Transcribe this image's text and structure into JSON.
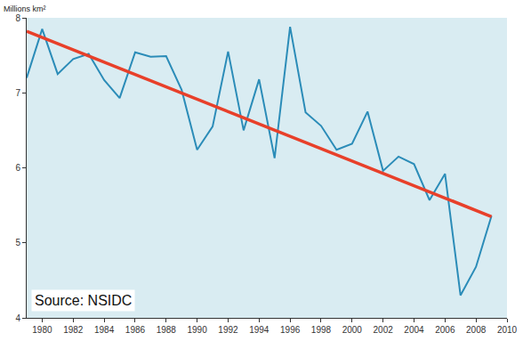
{
  "chart_data": {
    "type": "line",
    "y_label": "Millions km²",
    "annotation": "Source: NSIDC",
    "x": [
      1979,
      1980,
      1981,
      1982,
      1983,
      1984,
      1985,
      1986,
      1987,
      1988,
      1989,
      1990,
      1991,
      1992,
      1993,
      1994,
      1995,
      1996,
      1997,
      1998,
      1999,
      2000,
      2001,
      2002,
      2003,
      2004,
      2005,
      2006,
      2007,
      2008,
      2009
    ],
    "series": [
      {
        "color": "#2b8cb8",
        "values": [
          7.2,
          7.85,
          7.25,
          7.45,
          7.52,
          7.17,
          6.93,
          7.54,
          7.48,
          7.49,
          7.04,
          6.24,
          6.55,
          7.55,
          6.5,
          7.18,
          6.13,
          7.88,
          6.74,
          6.56,
          6.24,
          6.32,
          6.75,
          5.96,
          6.15,
          6.05,
          5.57,
          5.92,
          4.3,
          4.68,
          5.36
        ]
      },
      {
        "color": "#e8402a",
        "x": [
          1979,
          2009
        ],
        "values": [
          7.82,
          5.35
        ]
      }
    ],
    "xlim": [
      1979,
      2010
    ],
    "xticks": [
      1980,
      1982,
      1984,
      1986,
      1988,
      1990,
      1992,
      1994,
      1996,
      1998,
      2000,
      2002,
      2004,
      2006,
      2008,
      2010
    ],
    "ylim": [
      4,
      8
    ],
    "yticks": [
      4,
      5,
      6,
      7,
      8
    ],
    "grid": false
  }
}
